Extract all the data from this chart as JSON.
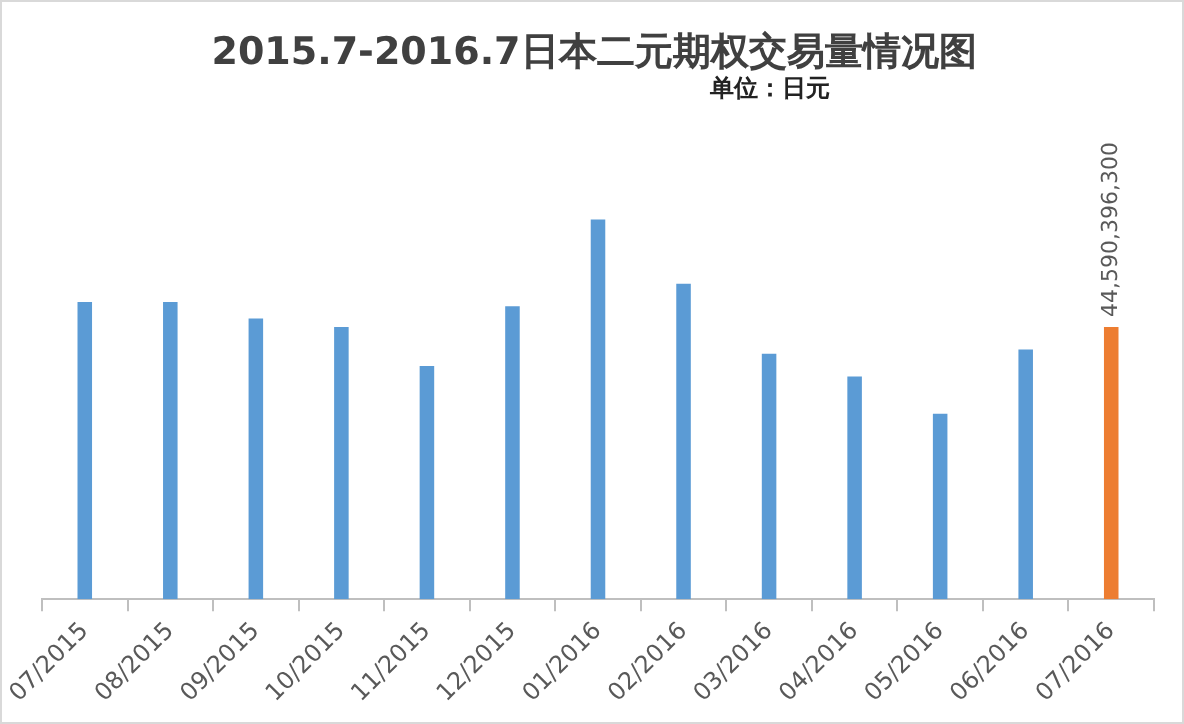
{
  "chart_data": {
    "type": "bar",
    "title": "2015.7-2016.7日本二元期权交易量情况图",
    "subtitle": "单位：日元",
    "categories": [
      "07/2015",
      "08/2015",
      "09/2015",
      "10/2015",
      "11/2015",
      "12/2015",
      "01/2016",
      "02/2016",
      "03/2016",
      "04/2016",
      "05/2016",
      "06/2016",
      "07/2016"
    ],
    "values": [
      48700000000,
      48700000000,
      46000000000,
      44600000000,
      38200000000,
      48000000000,
      62200000000,
      51700000000,
      40200000000,
      36500000000,
      30400000000,
      40900000000,
      44590396300
    ],
    "colors": [
      "#5b9bd5",
      "#5b9bd5",
      "#5b9bd5",
      "#5b9bd5",
      "#5b9bd5",
      "#5b9bd5",
      "#5b9bd5",
      "#5b9bd5",
      "#5b9bd5",
      "#5b9bd5",
      "#5b9bd5",
      "#5b9bd5",
      "#ed7d31"
    ],
    "value_labels": [
      null,
      null,
      null,
      null,
      null,
      null,
      null,
      null,
      null,
      null,
      null,
      null,
      "44,590,396,300"
    ],
    "grid": false,
    "legend": false
  }
}
